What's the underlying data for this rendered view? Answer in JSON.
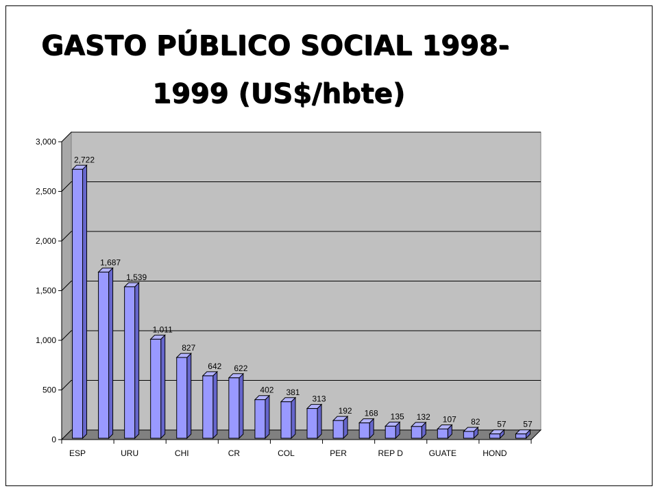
{
  "title_line1": "GASTO PÚBLICO SOCIAL 1998-",
  "title_line2": "1999 (US$/hbte)",
  "chart_data": {
    "type": "bar",
    "title": "GASTO PÚBLICO SOCIAL 1998- 1999 (US$/hbte)",
    "categories": [
      "ESP",
      "",
      "URU",
      "",
      "CHI",
      "",
      "CR",
      "",
      "COL",
      "",
      "PER",
      "",
      "REP D",
      "",
      "GUATE",
      "",
      "HOND",
      ""
    ],
    "values": [
      2722,
      1687,
      1539,
      1011,
      827,
      642,
      622,
      402,
      381,
      313,
      192,
      168,
      135,
      132,
      107,
      82,
      57,
      57
    ],
    "data_labels": [
      "2,722",
      "1,687",
      "1,539",
      "1,011",
      "827",
      "642",
      "622",
      "402",
      "381",
      "313",
      "192",
      "168",
      "135",
      "132",
      "107",
      "82",
      "57",
      "57"
    ],
    "ylim": [
      0,
      3000
    ],
    "yticks": [
      0,
      500,
      1000,
      1500,
      2000,
      2500,
      3000
    ],
    "ytick_labels": [
      "0",
      "500",
      "1,000",
      "1,500",
      "2,000",
      "2,500",
      "3,000"
    ],
    "grid": true,
    "legend": false,
    "colors": {
      "bar_front": "#9999ff",
      "bar_side": "#6666cc",
      "bar_top": "#b3b3ff",
      "plot_wall": "#c0c0c0",
      "floor": "#808080"
    }
  }
}
